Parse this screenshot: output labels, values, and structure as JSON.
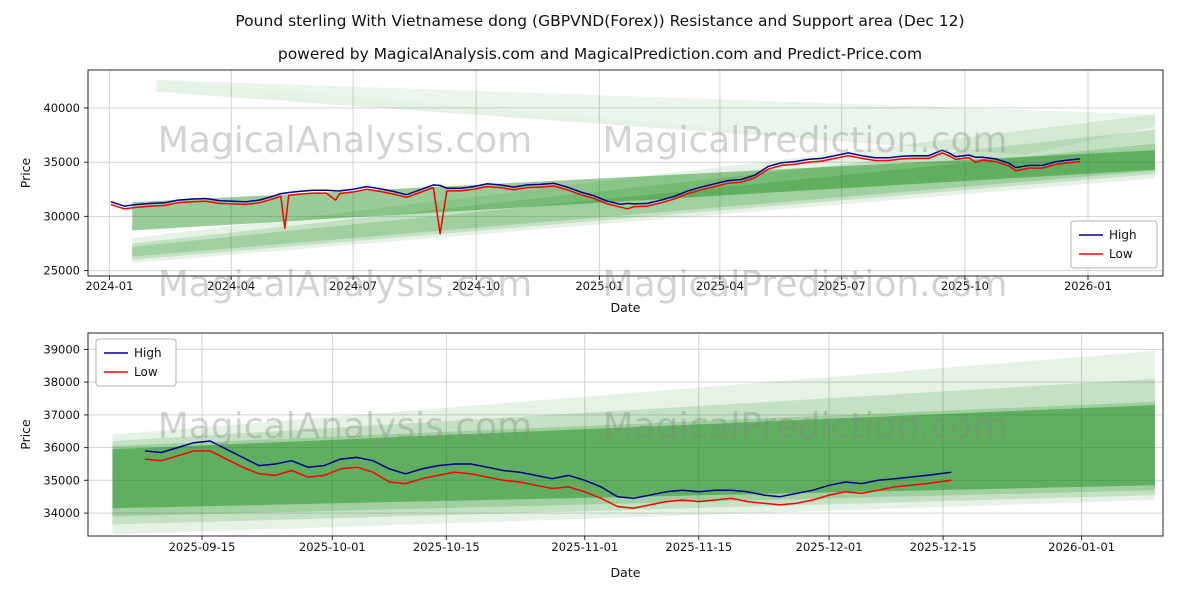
{
  "page": {
    "title": "Pound sterling With Vietnamese dong (GBPVND(Forex)) Resistance and Support area (Dec 12)",
    "subtitle": "powered by MagicalAnalysis.com and MagicalPrediction.com and Predict-Price.com"
  },
  "watermarks": {
    "left": "MagicalAnalysis.com",
    "right": "MagicalPrediction.com"
  },
  "colors": {
    "high": "#00008b",
    "low": "#ff0000",
    "band": "#008000",
    "grid": "#d3d3d3",
    "frame": "#262626",
    "watermark": "#808080"
  },
  "chart_data": [
    {
      "type": "line",
      "name": "overview",
      "xlabel": "Date",
      "ylabel": "Price",
      "x_domain": [
        "2023-12-16",
        "2026-02-26"
      ],
      "ylim": [
        24500,
        43500
      ],
      "x_ticks": [
        {
          "d": "2024-01-01",
          "label": "2024-01"
        },
        {
          "d": "2024-04-01",
          "label": "2024-04"
        },
        {
          "d": "2024-07-01",
          "label": "2024-07"
        },
        {
          "d": "2024-10-01",
          "label": "2024-10"
        },
        {
          "d": "2025-01-01",
          "label": "2025-01"
        },
        {
          "d": "2025-04-01",
          "label": "2025-04"
        },
        {
          "d": "2025-07-01",
          "label": "2025-07"
        },
        {
          "d": "2025-10-01",
          "label": "2025-10"
        },
        {
          "d": "2026-01-01",
          "label": "2026-01"
        }
      ],
      "y_ticks": [
        25000,
        30000,
        35000,
        40000
      ],
      "legend": {
        "position": "center-right",
        "entries": [
          {
            "label": "High",
            "color": "#00008b"
          },
          {
            "label": "Low",
            "color": "#ff0000"
          }
        ]
      },
      "bands": [
        {
          "opacity": 0.1,
          "polygon": [
            [
              "2024-01-18",
              28000
            ],
            [
              "2026-02-20",
              39400
            ],
            [
              "2026-02-20",
              33500
            ],
            [
              "2024-01-18",
              25700
            ]
          ]
        },
        {
          "opacity": 0.14,
          "polygon": [
            [
              "2024-01-18",
              27500
            ],
            [
              "2026-02-20",
              38000
            ],
            [
              "2026-02-20",
              33900
            ],
            [
              "2024-01-18",
              26000
            ]
          ]
        },
        {
          "opacity": 0.18,
          "polygon": [
            [
              "2024-01-18",
              27200
            ],
            [
              "2026-02-20",
              36700
            ],
            [
              "2026-02-20",
              34200
            ],
            [
              "2024-01-18",
              26300
            ]
          ]
        },
        {
          "opacity": 0.4,
          "polygon": [
            [
              "2024-01-18",
              31300
            ],
            [
              "2026-02-20",
              36100
            ],
            [
              "2026-02-20",
              34300
            ],
            [
              "2024-01-18",
              28700
            ]
          ]
        },
        {
          "opacity": 0.1,
          "polygon": [
            [
              "2024-02-05",
              42600
            ],
            [
              "2025-11-15",
              35700
            ],
            [
              "2024-02-05",
              41500
            ]
          ]
        },
        {
          "opacity": 0.08,
          "polygon": [
            [
              "2024-02-05",
              42600
            ],
            [
              "2026-02-20",
              39400
            ],
            [
              "2026-02-20",
              38300
            ],
            [
              "2025-11-15",
              35700
            ]
          ]
        }
      ],
      "columns": [
        "date",
        "high",
        "low"
      ],
      "series": [
        {
          "name": "High",
          "column": "high",
          "color": "#00008b"
        },
        {
          "name": "Low",
          "column": "low",
          "color": "#ff0000"
        }
      ],
      "rows": [
        [
          "2024-01-02",
          31350,
          31100
        ],
        [
          "2024-01-12",
          30950,
          30700
        ],
        [
          "2024-01-22",
          31100,
          30850
        ],
        [
          "2024-02-01",
          31200,
          30950
        ],
        [
          "2024-02-11",
          31250,
          31000
        ],
        [
          "2024-02-21",
          31500,
          31250
        ],
        [
          "2024-03-03",
          31600,
          31350
        ],
        [
          "2024-03-13",
          31650,
          31400
        ],
        [
          "2024-03-23",
          31450,
          31200
        ],
        [
          "2024-04-02",
          31400,
          31150
        ],
        [
          "2024-04-12",
          31350,
          31100
        ],
        [
          "2024-04-22",
          31500,
          31250
        ],
        [
          "2024-05-02",
          31850,
          31600
        ],
        [
          "2024-05-08",
          32100,
          31850
        ],
        [
          "2024-05-11",
          32150,
          28900
        ],
        [
          "2024-05-14",
          32200,
          31950
        ],
        [
          "2024-05-22",
          32300,
          32050
        ],
        [
          "2024-06-01",
          32400,
          32150
        ],
        [
          "2024-06-11",
          32400,
          32150
        ],
        [
          "2024-06-18",
          32350,
          31500
        ],
        [
          "2024-06-21",
          32350,
          32100
        ],
        [
          "2024-07-01",
          32500,
          32250
        ],
        [
          "2024-07-11",
          32750,
          32500
        ],
        [
          "2024-07-21",
          32550,
          32300
        ],
        [
          "2024-07-31",
          32300,
          32050
        ],
        [
          "2024-08-10",
          32000,
          31750
        ],
        [
          "2024-08-20",
          32450,
          32200
        ],
        [
          "2024-08-30",
          32900,
          32650
        ],
        [
          "2024-09-04",
          32850,
          28400
        ],
        [
          "2024-09-09",
          32600,
          32350
        ],
        [
          "2024-09-19",
          32600,
          32350
        ],
        [
          "2024-09-29",
          32750,
          32500
        ],
        [
          "2024-10-09",
          33000,
          32750
        ],
        [
          "2024-10-19",
          32900,
          32650
        ],
        [
          "2024-10-29",
          32700,
          32450
        ],
        [
          "2024-11-08",
          32900,
          32650
        ],
        [
          "2024-11-18",
          32950,
          32700
        ],
        [
          "2024-11-28",
          33050,
          32800
        ],
        [
          "2024-12-08",
          32700,
          32450
        ],
        [
          "2024-12-18",
          32250,
          32000
        ],
        [
          "2024-12-28",
          31900,
          31650
        ],
        [
          "2025-01-07",
          31400,
          31150
        ],
        [
          "2025-01-17",
          31100,
          30850
        ],
        [
          "2025-01-22",
          31200,
          30700
        ],
        [
          "2025-01-27",
          31150,
          30900
        ],
        [
          "2025-02-06",
          31200,
          30950
        ],
        [
          "2025-02-16",
          31500,
          31250
        ],
        [
          "2025-02-26",
          31850,
          31600
        ],
        [
          "2025-03-08",
          32350,
          32100
        ],
        [
          "2025-03-18",
          32700,
          32450
        ],
        [
          "2025-03-28",
          33000,
          32750
        ],
        [
          "2025-04-07",
          33300,
          33050
        ],
        [
          "2025-04-17",
          33400,
          33150
        ],
        [
          "2025-04-27",
          33800,
          33550
        ],
        [
          "2025-05-07",
          34600,
          34350
        ],
        [
          "2025-05-17",
          34950,
          34700
        ],
        [
          "2025-05-27",
          35050,
          34800
        ],
        [
          "2025-06-06",
          35250,
          35000
        ],
        [
          "2025-06-16",
          35350,
          35100
        ],
        [
          "2025-06-26",
          35600,
          35350
        ],
        [
          "2025-07-06",
          35850,
          35600
        ],
        [
          "2025-07-16",
          35600,
          35350
        ],
        [
          "2025-07-26",
          35400,
          35150
        ],
        [
          "2025-08-05",
          35400,
          35150
        ],
        [
          "2025-08-15",
          35550,
          35300
        ],
        [
          "2025-08-25",
          35600,
          35350
        ],
        [
          "2025-09-04",
          35600,
          35350
        ],
        [
          "2025-09-14",
          36100,
          35850
        ],
        [
          "2025-09-19",
          35850,
          35600
        ],
        [
          "2025-09-24",
          35500,
          35250
        ],
        [
          "2025-10-04",
          35650,
          35400
        ],
        [
          "2025-10-09",
          35450,
          35000
        ],
        [
          "2025-10-14",
          35450,
          35200
        ],
        [
          "2025-10-24",
          35300,
          35050
        ],
        [
          "2025-11-03",
          34900,
          34650
        ],
        [
          "2025-11-08",
          34500,
          34200
        ],
        [
          "2025-11-18",
          34700,
          34450
        ],
        [
          "2025-11-28",
          34700,
          34450
        ],
        [
          "2025-12-08",
          35050,
          34800
        ],
        [
          "2025-12-18",
          35200,
          34950
        ],
        [
          "2025-12-26",
          35300,
          35050
        ]
      ]
    },
    {
      "type": "line",
      "name": "detail",
      "xlabel": "Date",
      "ylabel": "Price",
      "x_domain": [
        "2025-09-01",
        "2026-01-11"
      ],
      "ylim": [
        33300,
        39500
      ],
      "x_ticks": [
        {
          "d": "2025-09-15",
          "label": "2025-09-15"
        },
        {
          "d": "2025-10-01",
          "label": "2025-10-01"
        },
        {
          "d": "2025-10-15",
          "label": "2025-10-15"
        },
        {
          "d": "2025-11-01",
          "label": "2025-11-01"
        },
        {
          "d": "2025-11-15",
          "label": "2025-11-15"
        },
        {
          "d": "2025-12-01",
          "label": "2025-12-01"
        },
        {
          "d": "2025-12-15",
          "label": "2025-12-15"
        },
        {
          "d": "2026-01-01",
          "label": "2026-01-01"
        }
      ],
      "y_ticks": [
        34000,
        35000,
        36000,
        37000,
        38000,
        39000
      ],
      "legend": {
        "position": "upper-left",
        "entries": [
          {
            "label": "High",
            "color": "#00008b"
          },
          {
            "label": "Low",
            "color": "#ff0000"
          }
        ]
      },
      "bands": [
        {
          "opacity": 0.1,
          "polygon": [
            [
              "2025-09-04",
              36400
            ],
            [
              "2026-01-10",
              38950
            ],
            [
              "2026-01-10",
              34400
            ],
            [
              "2025-09-04",
              33350
            ]
          ]
        },
        {
          "opacity": 0.14,
          "polygon": [
            [
              "2025-09-04",
              36200
            ],
            [
              "2026-01-10",
              38100
            ],
            [
              "2026-01-10",
              34550
            ],
            [
              "2025-09-04",
              33650
            ]
          ]
        },
        {
          "opacity": 0.18,
          "polygon": [
            [
              "2025-09-04",
              36050
            ],
            [
              "2026-01-10",
              37400
            ],
            [
              "2026-01-10",
              34700
            ],
            [
              "2025-09-04",
              33900
            ]
          ]
        },
        {
          "opacity": 0.4,
          "polygon": [
            [
              "2025-09-04",
              35950
            ],
            [
              "2026-01-10",
              37300
            ],
            [
              "2026-01-10",
              34850
            ],
            [
              "2025-09-04",
              34150
            ]
          ]
        }
      ],
      "columns": [
        "date",
        "high",
        "low"
      ],
      "series": [
        {
          "name": "High",
          "column": "high",
          "color": "#00008b"
        },
        {
          "name": "Low",
          "column": "low",
          "color": "#ff0000"
        }
      ],
      "rows": [
        [
          "2025-09-08",
          35900,
          35650
        ],
        [
          "2025-09-10",
          35850,
          35600
        ],
        [
          "2025-09-12",
          36000,
          35750
        ],
        [
          "2025-09-14",
          36150,
          35900
        ],
        [
          "2025-09-16",
          36200,
          35900
        ],
        [
          "2025-09-18",
          35950,
          35650
        ],
        [
          "2025-09-20",
          35700,
          35400
        ],
        [
          "2025-09-22",
          35450,
          35200
        ],
        [
          "2025-09-24",
          35500,
          35150
        ],
        [
          "2025-09-26",
          35600,
          35300
        ],
        [
          "2025-09-28",
          35400,
          35100
        ],
        [
          "2025-09-30",
          35450,
          35150
        ],
        [
          "2025-10-02",
          35650,
          35350
        ],
        [
          "2025-10-04",
          35700,
          35400
        ],
        [
          "2025-10-06",
          35600,
          35250
        ],
        [
          "2025-10-08",
          35350,
          34950
        ],
        [
          "2025-10-10",
          35200,
          34900
        ],
        [
          "2025-10-12",
          35350,
          35050
        ],
        [
          "2025-10-14",
          35450,
          35150
        ],
        [
          "2025-10-16",
          35500,
          35250
        ],
        [
          "2025-10-18",
          35500,
          35200
        ],
        [
          "2025-10-20",
          35400,
          35100
        ],
        [
          "2025-10-22",
          35300,
          35000
        ],
        [
          "2025-10-24",
          35250,
          34950
        ],
        [
          "2025-10-26",
          35150,
          34850
        ],
        [
          "2025-10-28",
          35050,
          34750
        ],
        [
          "2025-10-30",
          35150,
          34800
        ],
        [
          "2025-11-01",
          35000,
          34650
        ],
        [
          "2025-11-03",
          34800,
          34450
        ],
        [
          "2025-11-05",
          34500,
          34200
        ],
        [
          "2025-11-07",
          34450,
          34150
        ],
        [
          "2025-11-09",
          34550,
          34250
        ],
        [
          "2025-11-11",
          34650,
          34350
        ],
        [
          "2025-11-13",
          34700,
          34400
        ],
        [
          "2025-11-15",
          34650,
          34350
        ],
        [
          "2025-11-17",
          34700,
          34400
        ],
        [
          "2025-11-19",
          34700,
          34450
        ],
        [
          "2025-11-21",
          34650,
          34350
        ],
        [
          "2025-11-23",
          34550,
          34300
        ],
        [
          "2025-11-25",
          34500,
          34250
        ],
        [
          "2025-11-27",
          34600,
          34300
        ],
        [
          "2025-11-29",
          34700,
          34400
        ],
        [
          "2025-12-01",
          34850,
          34550
        ],
        [
          "2025-12-03",
          34950,
          34650
        ],
        [
          "2025-12-05",
          34900,
          34600
        ],
        [
          "2025-12-07",
          35000,
          34700
        ],
        [
          "2025-12-09",
          35050,
          34800
        ],
        [
          "2025-12-11",
          35100,
          34850
        ],
        [
          "2025-12-13",
          35150,
          34900
        ],
        [
          "2025-12-16",
          35250,
          35000
        ]
      ]
    }
  ]
}
